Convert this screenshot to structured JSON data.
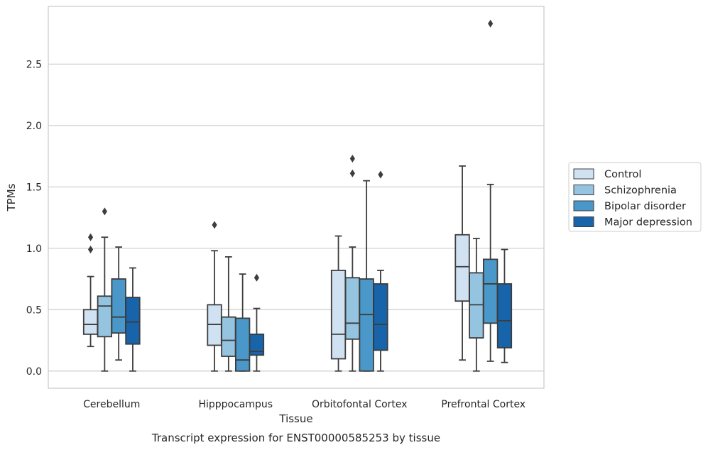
{
  "chart_data": {
    "type": "boxplot",
    "title": "Transcript expression for ENST00000585253 by tissue",
    "xlabel": "Tissue",
    "ylabel": "TPMs",
    "categories": [
      "Cerebellum",
      "Hipppocampus",
      "Orbitofontal Cortex",
      "Prefrontal Cortex"
    ],
    "ylim": [
      -0.14,
      2.97
    ],
    "yticks": [
      "0.0",
      "0.5",
      "1.0",
      "1.5",
      "2.0",
      "2.5"
    ],
    "grid": true,
    "legend_position": "right",
    "series": [
      {
        "name": "Control",
        "color": "#d0e1f2",
        "boxes": [
          {
            "whislo": 0.2,
            "q1": 0.3,
            "med": 0.38,
            "q3": 0.5,
            "whishi": 0.77,
            "fliers": [
              0.99,
              1.09
            ]
          },
          {
            "whislo": 0.0,
            "q1": 0.21,
            "med": 0.38,
            "q3": 0.54,
            "whishi": 0.98,
            "fliers": [
              1.19
            ]
          },
          {
            "whislo": 0.0,
            "q1": 0.1,
            "med": 0.3,
            "q3": 0.82,
            "whishi": 1.1,
            "fliers": []
          },
          {
            "whislo": 0.09,
            "q1": 0.57,
            "med": 0.85,
            "q3": 1.11,
            "whishi": 1.67,
            "fliers": []
          }
        ]
      },
      {
        "name": "Schizophrenia",
        "color": "#94c4df",
        "boxes": [
          {
            "whislo": 0.0,
            "q1": 0.28,
            "med": 0.53,
            "q3": 0.61,
            "whishi": 1.09,
            "fliers": [
              1.3
            ]
          },
          {
            "whislo": 0.0,
            "q1": 0.12,
            "med": 0.25,
            "q3": 0.44,
            "whishi": 0.93,
            "fliers": []
          },
          {
            "whislo": 0.0,
            "q1": 0.26,
            "med": 0.39,
            "q3": 0.76,
            "whishi": 1.01,
            "fliers": [
              1.61,
              1.73
            ]
          },
          {
            "whislo": 0.0,
            "q1": 0.27,
            "med": 0.54,
            "q3": 0.8,
            "whishi": 1.08,
            "fliers": []
          }
        ]
      },
      {
        "name": "Bipolar disorder",
        "color": "#4a98c9",
        "boxes": [
          {
            "whislo": 0.09,
            "q1": 0.31,
            "med": 0.44,
            "q3": 0.75,
            "whishi": 1.01,
            "fliers": []
          },
          {
            "whislo": 0.0,
            "q1": 0.0,
            "med": 0.09,
            "q3": 0.43,
            "whishi": 0.79,
            "fliers": []
          },
          {
            "whislo": 0.0,
            "q1": 0.0,
            "med": 0.46,
            "q3": 0.75,
            "whishi": 1.55,
            "fliers": []
          },
          {
            "whislo": 0.08,
            "q1": 0.39,
            "med": 0.71,
            "q3": 0.91,
            "whishi": 1.52,
            "fliers": [
              2.83
            ]
          }
        ]
      },
      {
        "name": "Major depression",
        "color": "#1764ab",
        "boxes": [
          {
            "whislo": 0.0,
            "q1": 0.22,
            "med": 0.4,
            "q3": 0.6,
            "whishi": 0.84,
            "fliers": []
          },
          {
            "whislo": 0.0,
            "q1": 0.13,
            "med": 0.16,
            "q3": 0.3,
            "whishi": 0.51,
            "fliers": [
              0.76
            ]
          },
          {
            "whislo": 0.0,
            "q1": 0.17,
            "med": 0.38,
            "q3": 0.71,
            "whishi": 0.82,
            "fliers": [
              1.6
            ]
          },
          {
            "whislo": 0.07,
            "q1": 0.19,
            "med": 0.41,
            "q3": 0.71,
            "whishi": 0.99,
            "fliers": []
          }
        ]
      }
    ]
  }
}
